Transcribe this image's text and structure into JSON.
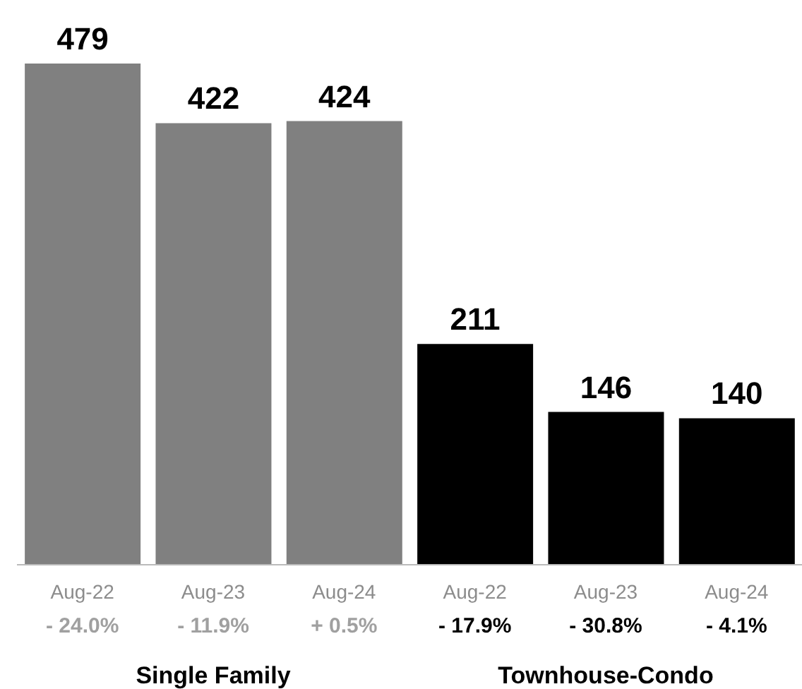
{
  "chart_data": {
    "type": "bar",
    "categories": [
      "Aug-22",
      "Aug-23",
      "Aug-24",
      "Aug-22",
      "Aug-23",
      "Aug-24"
    ],
    "values": [
      479,
      422,
      424,
      211,
      146,
      140
    ],
    "colors": [
      "#808080",
      "#808080",
      "#808080",
      "#000000",
      "#000000",
      "#000000"
    ],
    "data_labels": true,
    "annotations": [
      "- 24.0%",
      "- 11.9%",
      "+ 0.5%",
      "- 17.9%",
      "- 30.8%",
      "- 4.1%",
      "Single Family",
      "Townhouse-Condo"
    ]
  }
}
